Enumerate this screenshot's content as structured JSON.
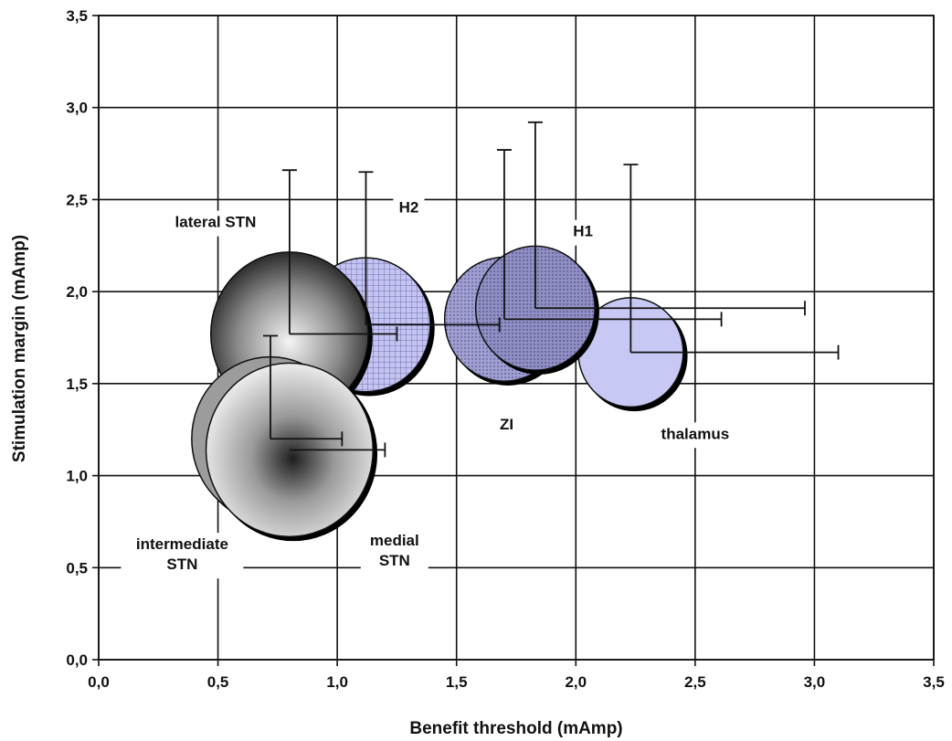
{
  "chart_data": {
    "type": "scatter",
    "subtype": "bubble-with-error-bars",
    "title": "",
    "xlabel": "Benefit threshold (mAmp)",
    "ylabel": "Stimulation margin (mAmp)",
    "xlim": [
      0,
      3.5
    ],
    "ylim": [
      0,
      3.5
    ],
    "x_ticks": [
      "0,0",
      "0,5",
      "1,0",
      "1,5",
      "2,0",
      "2,5",
      "3,0",
      "3,5"
    ],
    "y_ticks": [
      "0,0",
      "0,5",
      "1,0",
      "1,5",
      "2,0",
      "2,5",
      "3,0",
      "3,5"
    ],
    "grid": true,
    "points": [
      {
        "name": "thalamus",
        "x": 2.23,
        "y": 1.67,
        "radius_x": 0.22,
        "x_err": 0.87,
        "y_err": 1.02,
        "fill": "#c8c8f4",
        "pattern": "solid-light"
      },
      {
        "name": "ZI",
        "x": 1.7,
        "y": 1.85,
        "radius_x": 0.25,
        "x_err": 0.91,
        "y_err": 0.92,
        "fill": "#9a9acc",
        "pattern": "dots"
      },
      {
        "name": "H1",
        "x": 1.83,
        "y": 1.91,
        "radius_x": 0.25,
        "x_err": 1.13,
        "y_err": 1.01,
        "fill": "#8c8cc0",
        "pattern": "dots"
      },
      {
        "name": "H2",
        "x": 1.12,
        "y": 1.82,
        "radius_x": 0.27,
        "x_err": 0.56,
        "y_err": 0.83,
        "fill": "#b4b4e8",
        "pattern": "grid"
      },
      {
        "name": "lateral STN",
        "x": 0.8,
        "y": 1.77,
        "radius_x": 0.33,
        "x_err": 0.45,
        "y_err": 0.89,
        "fill": "#6a6a6a",
        "pattern": "radial-dark"
      },
      {
        "name": "intermediate STN",
        "x": 0.72,
        "y": 1.2,
        "radius_x": 0.33,
        "x_err": 0.3,
        "y_err": 0.56,
        "fill": "#9c9c9c",
        "pattern": "solid-gray"
      },
      {
        "name": "medial STN",
        "x": 0.8,
        "y": 1.14,
        "radius_x": 0.35,
        "x_err": 0.4,
        "y_err": 0.0,
        "fill": "#e0e0e0",
        "pattern": "radial-light"
      }
    ],
    "labels": [
      {
        "key": "lateral_stn",
        "lines": [
          "lateral STN"
        ],
        "x": 0.49,
        "y": 2.35
      },
      {
        "key": "h2",
        "lines": [
          "H2"
        ],
        "x": 1.3,
        "y": 2.43
      },
      {
        "key": "h1",
        "lines": [
          "H1"
        ],
        "x": 2.03,
        "y": 2.3
      },
      {
        "key": "zi",
        "lines": [
          "ZI"
        ],
        "x": 1.71,
        "y": 1.25
      },
      {
        "key": "thalamus",
        "lines": [
          "thalamus"
        ],
        "x": 2.5,
        "y": 1.2
      },
      {
        "key": "intermediate_stn",
        "lines": [
          "intermediate",
          "STN"
        ],
        "x": 0.35,
        "y": 0.6
      },
      {
        "key": "medial_stn",
        "lines": [
          "medial",
          "STN"
        ],
        "x": 1.24,
        "y": 0.62
      }
    ]
  }
}
